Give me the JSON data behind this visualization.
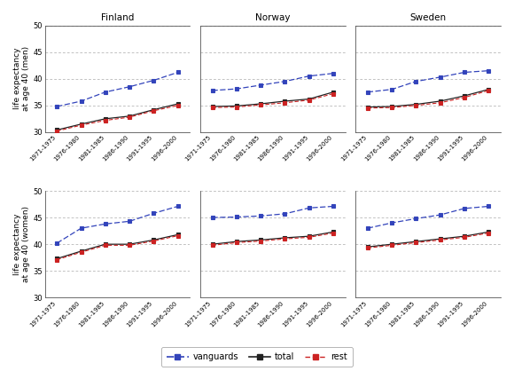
{
  "countries": [
    "Finland",
    "Norway",
    "Sweden"
  ],
  "x_labels": [
    "1971-1975",
    "1976-1980",
    "1981-1985",
    "1986-1990",
    "1991-1995",
    "1996-2000"
  ],
  "men": {
    "Finland": {
      "vanguards": [
        34.8,
        35.8,
        37.5,
        38.5,
        39.7,
        41.2
      ],
      "total": [
        30.4,
        31.5,
        32.5,
        33.0,
        34.2,
        35.3
      ],
      "rest": [
        30.2,
        31.3,
        32.2,
        32.8,
        34.0,
        35.0
      ]
    },
    "Norway": {
      "vanguards": [
        37.8,
        38.1,
        38.8,
        39.5,
        40.5,
        41.0
      ],
      "total": [
        34.8,
        34.9,
        35.3,
        35.8,
        36.2,
        37.5
      ],
      "rest": [
        34.6,
        34.7,
        35.1,
        35.5,
        36.0,
        37.2
      ]
    },
    "Sweden": {
      "vanguards": [
        37.5,
        38.0,
        39.5,
        40.3,
        41.2,
        41.5
      ],
      "total": [
        34.7,
        34.8,
        35.2,
        35.8,
        36.8,
        38.0
      ],
      "rest": [
        34.5,
        34.6,
        35.0,
        35.5,
        36.5,
        37.8
      ]
    }
  },
  "women": {
    "Finland": {
      "vanguards": [
        40.2,
        43.0,
        43.8,
        44.3,
        45.8,
        47.1
      ],
      "total": [
        37.3,
        38.7,
        40.0,
        40.0,
        40.8,
        41.8
      ],
      "rest": [
        37.1,
        38.5,
        39.8,
        39.8,
        40.6,
        41.6
      ]
    },
    "Norway": {
      "vanguards": [
        45.0,
        45.1,
        45.3,
        45.7,
        46.8,
        47.1
      ],
      "total": [
        40.0,
        40.5,
        40.8,
        41.2,
        41.5,
        42.3
      ],
      "rest": [
        39.8,
        40.3,
        40.6,
        41.0,
        41.3,
        42.1
      ]
    },
    "Sweden": {
      "vanguards": [
        43.0,
        44.0,
        44.8,
        45.5,
        46.7,
        47.1
      ],
      "total": [
        39.5,
        40.0,
        40.5,
        41.0,
        41.5,
        42.3
      ],
      "rest": [
        39.3,
        39.8,
        40.3,
        40.8,
        41.3,
        42.1
      ]
    }
  },
  "vanguard_color": "#3344bb",
  "total_color": "#222222",
  "rest_color": "#cc2222",
  "ylim": [
    30,
    50
  ],
  "yticks": [
    30,
    35,
    40,
    45,
    50
  ],
  "grid_ticks": [
    35,
    40,
    45,
    50
  ],
  "figsize": [
    5.8,
    4.18
  ],
  "dpi": 100
}
